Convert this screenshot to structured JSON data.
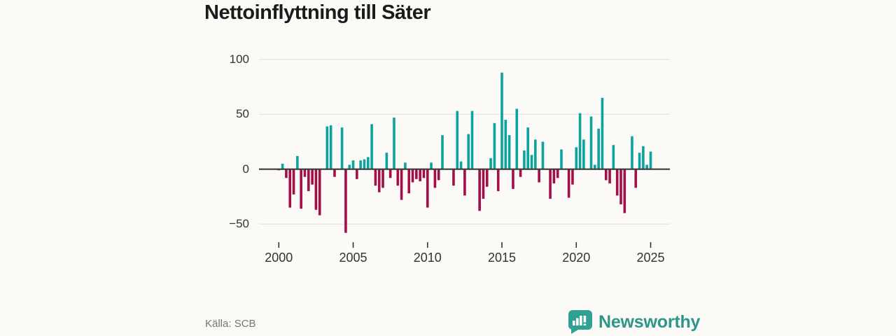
{
  "header": {
    "title": "Nettoinflyttning till Säter"
  },
  "footer": {
    "source": "Källa: SCB",
    "brand": "Newsworthy"
  },
  "colors": {
    "positive": "#0ba39e",
    "negative": "#a31049",
    "grid": "#e0dedb",
    "zero_axis": "#3a3a3a",
    "tick": "#333333",
    "text": "#333333",
    "muted_text": "#757575",
    "brand_text": "#2c968a",
    "brand_icon": "#2fa193",
    "background": "#fbfaf7"
  },
  "chart_data": {
    "type": "bar",
    "title": "Nettoinflyttning till Säter",
    "frequency": "quarterly",
    "x_start": "2000-Q1",
    "x_end": "2025-Q1",
    "x_tick_years": [
      2000,
      2005,
      2010,
      2015,
      2020,
      2025
    ],
    "x_tick_labels": [
      "2000",
      "2005",
      "2010",
      "2015",
      "2020",
      "2025"
    ],
    "y_ticks": [
      100,
      50,
      0,
      -50
    ],
    "y_tick_labels": [
      "100",
      "50",
      "0",
      "−50"
    ],
    "ylim": [
      -65,
      110
    ],
    "grid": "horizontal",
    "legend": "none",
    "values": [
      -1,
      5,
      -8,
      -35,
      -23,
      12,
      -36,
      -7,
      -20,
      -14,
      -37,
      -42,
      0,
      39,
      40,
      -7,
      0,
      38,
      -58,
      4,
      8,
      -9,
      8,
      9,
      11,
      41,
      -15,
      -21,
      -17,
      15,
      -8,
      47,
      -15,
      -28,
      6,
      -22,
      -12,
      -9,
      -11,
      -8,
      -35,
      6,
      -17,
      -10,
      31,
      0,
      0,
      -15,
      53,
      7,
      -24,
      32,
      53,
      0,
      -38,
      -27,
      -16,
      10,
      42,
      -20,
      88,
      45,
      31,
      -18,
      55,
      -7,
      17,
      38,
      13,
      27,
      -12,
      25,
      0,
      -27,
      -13,
      -8,
      18,
      0,
      -26,
      -14,
      20,
      51,
      27,
      0,
      48,
      4,
      37,
      65,
      -10,
      -13,
      22,
      -24,
      -32,
      -40,
      0,
      30,
      -17,
      15,
      21,
      4,
      16
    ]
  }
}
